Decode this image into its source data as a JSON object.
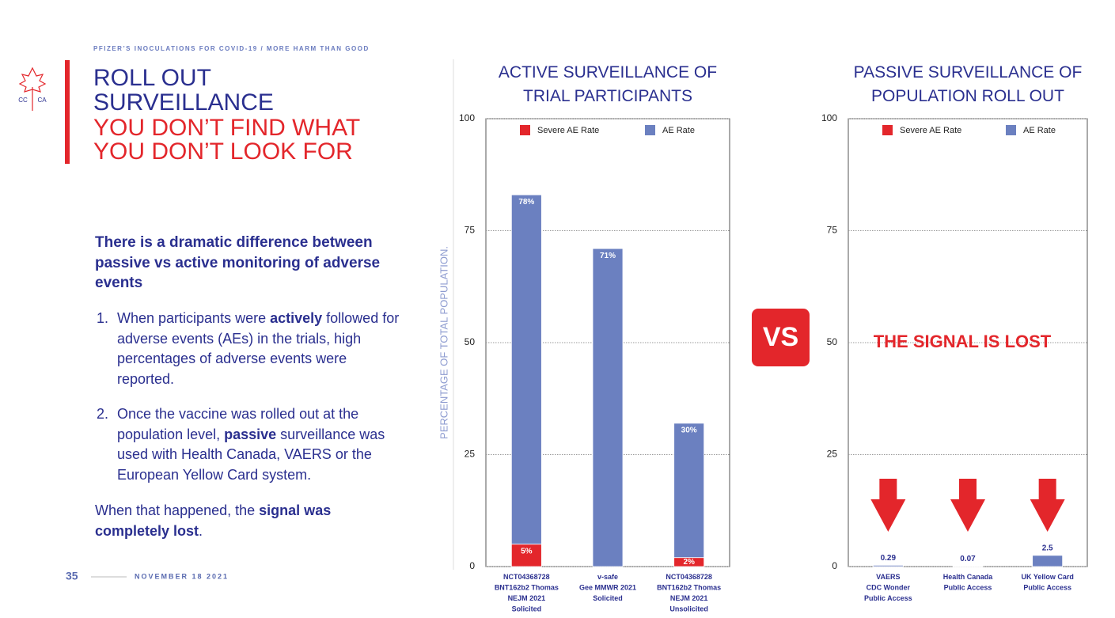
{
  "header": {
    "kicker": "PFIZER’S INOCULATIONS FOR COVID-19 / MORE HARM THAN GOOD",
    "logo_left": "CC",
    "logo_right": "CA"
  },
  "title": {
    "blue": [
      "ROLL OUT",
      "SURVEILLANCE"
    ],
    "red": [
      "YOU DON’T FIND WHAT",
      "YOU DON’T LOOK FOR"
    ]
  },
  "body": {
    "intro": "There is a dramatic difference between passive vs active monitoring of adverse events",
    "items": [
      {
        "marker": "1.",
        "parts": [
          {
            "text": "When participants were ",
            "bold": false
          },
          {
            "text": "actively",
            "bold": true
          },
          {
            "text": " followed for adverse events (AEs) in the trials, high percentages of adverse events were reported.",
            "bold": false
          }
        ]
      },
      {
        "marker": "2.",
        "parts": [
          {
            "text": "Once the vaccine was rolled out at the population level, ",
            "bold": false
          },
          {
            "text": "passive",
            "bold": true
          },
          {
            "text": " surveillance was used with Health Canada, VAERS or the European Yellow Card system.",
            "bold": false
          }
        ]
      }
    ],
    "conclusion": [
      {
        "text": "When that happened, the ",
        "bold": false
      },
      {
        "text": "signal was completely lost",
        "bold": true
      },
      {
        "text": ".",
        "bold": false
      }
    ]
  },
  "footer": {
    "page": "35",
    "date": "NOVEMBER 18 2021"
  },
  "badge": "VS",
  "chart_data": [
    {
      "type": "bar",
      "stacked": true,
      "title": "ACTIVE SURVEILLANCE OF TRIAL PARTICIPANTS",
      "y_label": "PERCENTAGE OF TOTAL POPULATION.",
      "categories": [
        "NCT04368728\nBNT162b2 Thomas\nNEJM 2021\nSolicited",
        "v-safe\nGee MMWR 2021\nSolicited",
        "NCT04368728\nBNT162b2 Thomas\nNEJM 2021\nUnsolicited"
      ],
      "series": [
        {
          "name": "Severe AE Rate",
          "color": "#e3262b",
          "values": [
            5,
            null,
            2
          ],
          "value_labels": [
            "5%",
            null,
            "2%"
          ]
        },
        {
          "name": "AE Rate",
          "color": "#6b80c0",
          "values": [
            78,
            71,
            30
          ],
          "value_labels": [
            "78%",
            "71%",
            "30%"
          ]
        }
      ],
      "ylim": [
        0,
        100
      ],
      "yticks": [
        0,
        25,
        50,
        75,
        100
      ],
      "grid": true,
      "legend": "top"
    },
    {
      "type": "bar",
      "stacked": true,
      "title": "PASSIVE SURVEILLANCE OF POPULATION ROLL OUT",
      "annotation": "THE SIGNAL IS LOST",
      "categories": [
        "VAERS\nCDC Wonder\nPublic Access",
        "Health Canada\nPublic Access",
        "UK Yellow Card\nPublic Access"
      ],
      "series": [
        {
          "name": "Severe AE Rate",
          "color": "#e3262b",
          "values": [
            null,
            null,
            null
          ]
        },
        {
          "name": "AE Rate",
          "color": "#6b80c0",
          "values": [
            0.29,
            0.07,
            2.5
          ]
        }
      ],
      "ylim": [
        0,
        100
      ],
      "yticks": [
        0,
        25,
        50,
        75,
        100
      ],
      "grid": true,
      "legend": "top"
    }
  ]
}
